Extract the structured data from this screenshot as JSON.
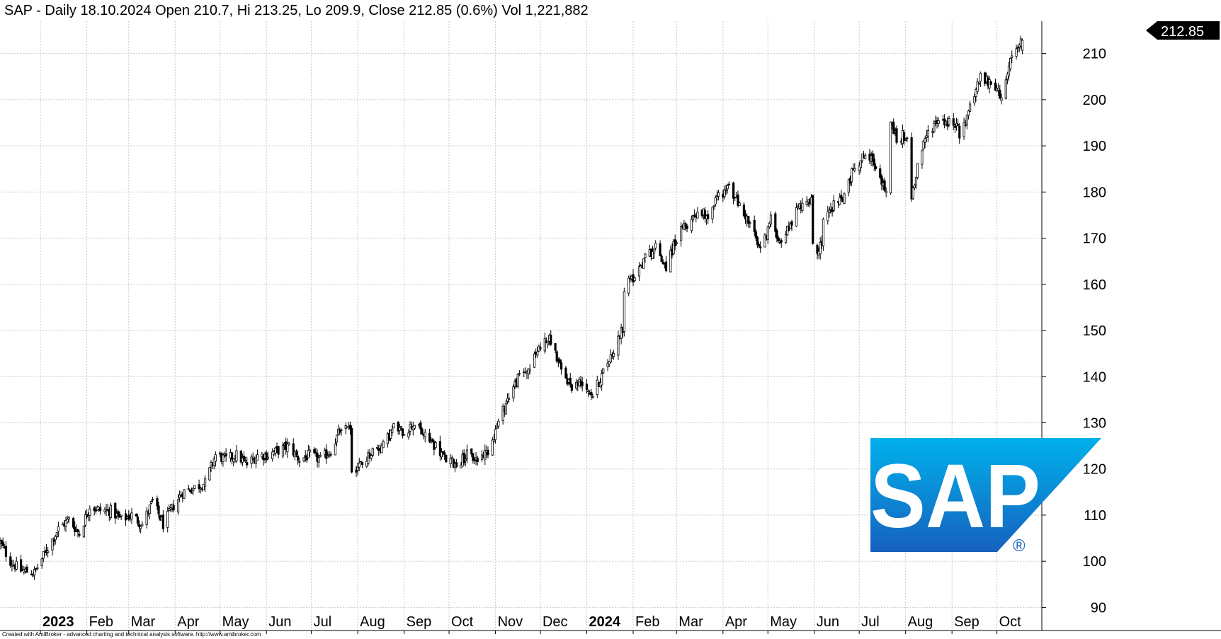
{
  "title": "SAP - Daily 18.10.2024 Open 210.7, Hi 213.25, Lo 209.9, Close 212.85 (0.6%) Vol 1,221,882",
  "footer": "Created with AmiBroker - advanced charting and technical analysis software. http://www.amibroker.com",
  "last_price_label": "212.85",
  "logo": {
    "text": "SAP",
    "registered": "®",
    "colors": {
      "top": "#00b1eb",
      "bottom": "#1661be",
      "text": "#ffffff"
    }
  },
  "chart_data": {
    "type": "candlestick",
    "symbol": "SAP",
    "interval": "Daily",
    "yticks": [
      90,
      100,
      110,
      120,
      130,
      140,
      150,
      160,
      170,
      180,
      190,
      200,
      210
    ],
    "ylim": [
      85,
      217
    ],
    "xlim": [
      "2022-12-05",
      "2024-10-31"
    ],
    "month_labels": [
      {
        "date": "2023-01-01",
        "label": "2023",
        "bold": true
      },
      {
        "date": "2023-02-01",
        "label": "Feb"
      },
      {
        "date": "2023-03-01",
        "label": "Mar"
      },
      {
        "date": "2023-04-01",
        "label": "Apr"
      },
      {
        "date": "2023-05-01",
        "label": "May"
      },
      {
        "date": "2023-06-01",
        "label": "Jun"
      },
      {
        "date": "2023-07-01",
        "label": "Jul"
      },
      {
        "date": "2023-08-01",
        "label": "Aug"
      },
      {
        "date": "2023-09-01",
        "label": "Sep"
      },
      {
        "date": "2023-10-01",
        "label": "Oct"
      },
      {
        "date": "2023-11-01",
        "label": "Nov"
      },
      {
        "date": "2023-12-01",
        "label": "Dec"
      },
      {
        "date": "2024-01-01",
        "label": "2024",
        "bold": true
      },
      {
        "date": "2024-02-01",
        "label": "Feb"
      },
      {
        "date": "2024-03-01",
        "label": "Mar"
      },
      {
        "date": "2024-04-01",
        "label": "Apr"
      },
      {
        "date": "2024-05-01",
        "label": "May"
      },
      {
        "date": "2024-06-01",
        "label": "Jun"
      },
      {
        "date": "2024-07-01",
        "label": "Jul"
      },
      {
        "date": "2024-08-01",
        "label": "Aug"
      },
      {
        "date": "2024-09-01",
        "label": "Sep"
      },
      {
        "date": "2024-10-01",
        "label": "Oct"
      }
    ],
    "close_path": [
      [
        "2022-12-05",
        104
      ],
      [
        "2022-12-12",
        100
      ],
      [
        "2022-12-19",
        98
      ],
      [
        "2022-12-28",
        97.5
      ],
      [
        "2023-01-06",
        103
      ],
      [
        "2023-01-13",
        107
      ],
      [
        "2023-01-20",
        109
      ],
      [
        "2023-01-27",
        106
      ],
      [
        "2023-02-03",
        112
      ],
      [
        "2023-02-10",
        111
      ],
      [
        "2023-02-17",
        111
      ],
      [
        "2023-02-24",
        109
      ],
      [
        "2023-03-03",
        110
      ],
      [
        "2023-03-10",
        108
      ],
      [
        "2023-03-17",
        113
      ],
      [
        "2023-03-24",
        108
      ],
      [
        "2023-03-31",
        112
      ],
      [
        "2023-04-06",
        115
      ],
      [
        "2023-04-14",
        116
      ],
      [
        "2023-04-21",
        117
      ],
      [
        "2023-04-28",
        123
      ],
      [
        "2023-05-05",
        122
      ],
      [
        "2023-05-12",
        123
      ],
      [
        "2023-05-19",
        121
      ],
      [
        "2023-05-26",
        123
      ],
      [
        "2023-06-02",
        123
      ],
      [
        "2023-06-09",
        124
      ],
      [
        "2023-06-16",
        125
      ],
      [
        "2023-06-23",
        122
      ],
      [
        "2023-06-30",
        123
      ],
      [
        "2023-07-07",
        122
      ],
      [
        "2023-07-14",
        124
      ],
      [
        "2023-07-21",
        129
      ],
      [
        "2023-07-28",
        120
      ],
      [
        "2023-08-04",
        121
      ],
      [
        "2023-08-11",
        124
      ],
      [
        "2023-08-18",
        125
      ],
      [
        "2023-08-25",
        129
      ],
      [
        "2023-09-01",
        128
      ],
      [
        "2023-09-08",
        130
      ],
      [
        "2023-09-15",
        127
      ],
      [
        "2023-09-22",
        125
      ],
      [
        "2023-09-29",
        122
      ],
      [
        "2023-10-06",
        121
      ],
      [
        "2023-10-13",
        123
      ],
      [
        "2023-10-20",
        122
      ],
      [
        "2023-10-27",
        124
      ],
      [
        "2023-11-03",
        130
      ],
      [
        "2023-11-10",
        136
      ],
      [
        "2023-11-17",
        140
      ],
      [
        "2023-11-24",
        142
      ],
      [
        "2023-12-01",
        147
      ],
      [
        "2023-12-08",
        148
      ],
      [
        "2023-12-15",
        141
      ],
      [
        "2023-12-22",
        138
      ],
      [
        "2023-12-29",
        139
      ],
      [
        "2024-01-05",
        136
      ],
      [
        "2024-01-12",
        141
      ],
      [
        "2024-01-19",
        146
      ],
      [
        "2024-01-24",
        150
      ],
      [
        "2024-01-26",
        159
      ],
      [
        "2024-02-02",
        162
      ],
      [
        "2024-02-09",
        166
      ],
      [
        "2024-02-16",
        168
      ],
      [
        "2024-02-23",
        164
      ],
      [
        "2024-03-01",
        170
      ],
      [
        "2024-03-08",
        173
      ],
      [
        "2024-03-15",
        176
      ],
      [
        "2024-03-22",
        175
      ],
      [
        "2024-03-28",
        179
      ],
      [
        "2024-04-05",
        181
      ],
      [
        "2024-04-12",
        177
      ],
      [
        "2024-04-19",
        173
      ],
      [
        "2024-04-26",
        167
      ],
      [
        "2024-05-03",
        174
      ],
      [
        "2024-05-10",
        169
      ],
      [
        "2024-05-17",
        174
      ],
      [
        "2024-05-24",
        178
      ],
      [
        "2024-05-31",
        168
      ],
      [
        "2024-06-07",
        175
      ],
      [
        "2024-06-14",
        177
      ],
      [
        "2024-06-21",
        179
      ],
      [
        "2024-06-28",
        186
      ],
      [
        "2024-07-05",
        188
      ],
      [
        "2024-07-12",
        186
      ],
      [
        "2024-07-19",
        180
      ],
      [
        "2024-07-22",
        195
      ],
      [
        "2024-07-26",
        192
      ],
      [
        "2024-08-05",
        179
      ],
      [
        "2024-08-09",
        186
      ],
      [
        "2024-08-16",
        193
      ],
      [
        "2024-08-23",
        196
      ],
      [
        "2024-08-30",
        195
      ],
      [
        "2024-09-06",
        191
      ],
      [
        "2024-09-13",
        199
      ],
      [
        "2024-09-20",
        205
      ],
      [
        "2024-09-27",
        203
      ],
      [
        "2024-10-04",
        201
      ],
      [
        "2024-10-11",
        209
      ],
      [
        "2024-10-18",
        212.85
      ]
    ],
    "gaps": [
      "2023-07-28",
      "2024-01-26",
      "2024-05-31",
      "2024-06-07",
      "2024-07-22",
      "2024-08-05",
      "2024-09-06"
    ],
    "last_bar": {
      "date": "2024-10-18",
      "open": 210.7,
      "high": 213.25,
      "low": 209.9,
      "close": 212.85,
      "volume": 1221882,
      "change_pct": 0.6
    }
  }
}
